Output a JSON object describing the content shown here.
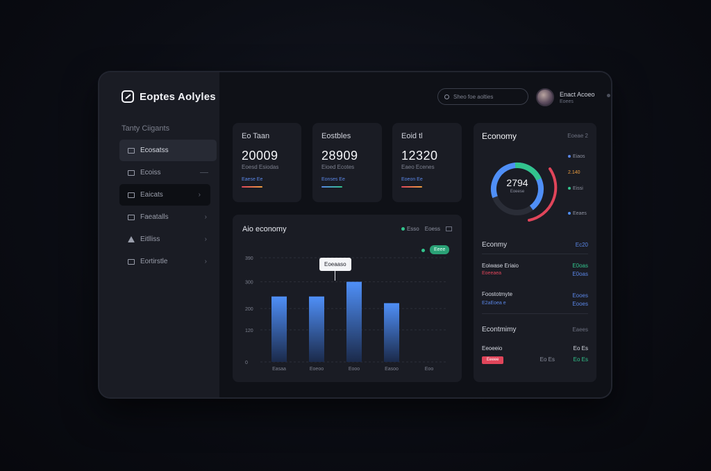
{
  "app": {
    "title": "Eoptes Aolyles"
  },
  "sidebar": {
    "section": "Tanty Ciigants",
    "items": [
      {
        "label": "Ecosatss",
        "icon": "square-icon"
      },
      {
        "label": "Ecoiss",
        "icon": "card-icon"
      },
      {
        "label": "Eaicats",
        "icon": "window-icon"
      },
      {
        "label": "Faeatalls",
        "icon": "folder-icon"
      },
      {
        "label": "Eitlliss",
        "icon": "triangle-icon"
      },
      {
        "label": "Eortirstle",
        "icon": "list-icon"
      }
    ]
  },
  "header": {
    "search_placeholder": "Sheo foe aolties",
    "user": {
      "name": "Enact Acoeo",
      "role": "Eoees"
    }
  },
  "stats": [
    {
      "label": "Eo Taan",
      "value": "20009",
      "sub": "Eoesd Esiodas",
      "link": "Eaese Ee",
      "bar_colors": [
        "#e0455a",
        "#f0a040"
      ]
    },
    {
      "label": "Eostbles",
      "value": "28909",
      "sub": "Eioed Ecotes",
      "link": "Eonses Ee",
      "bar_colors": [
        "#5a86e6",
        "#32c48d"
      ]
    },
    {
      "label": "Eoid tl",
      "value": "12320",
      "sub": "Eaeo Ecenes",
      "link": "Eoeon Ee",
      "bar_colors": [
        "#e0455a",
        "#f0a040"
      ]
    }
  ],
  "bar_chart": {
    "title": "Aio economy",
    "legend": [
      "Esso",
      "Eoess"
    ],
    "badge": "Eeee",
    "tooltip": "Eoeaaso"
  },
  "chart_data": {
    "type": "bar",
    "title": "Aio economy",
    "categories": [
      "Easaa",
      "Eoeoo",
      "Eooo",
      "Easoo",
      "Eoo"
    ],
    "values": [
      245,
      245,
      300,
      220,
      null
    ],
    "yticks": [
      "0",
      "120",
      "200",
      "300",
      "390"
    ],
    "ylim": [
      0,
      390
    ],
    "grid": true,
    "bar_color": "#4f8ff7"
  },
  "economy": {
    "title": "Economy",
    "meta": "Eoeae 2",
    "ring_value": "2794",
    "ring_sub": "Eoeese",
    "ring_labels": [
      {
        "text": "Eiaos",
        "color": "#5a86e6"
      },
      {
        "text": "2.140",
        "color": "#f0a040"
      },
      {
        "text": "Eissi",
        "color": "#32c48d"
      },
      {
        "text": "Eeaes",
        "color": "#4f8ff7"
      }
    ],
    "rows": [
      {
        "title": "Econmy",
        "value": "Ec20",
        "value_color": "#5a86e6"
      },
      {
        "title": "Eoiwase Eriaio",
        "sub": "Eoeeaea",
        "value": "E0oas",
        "value_color": "#32c48d"
      },
      {
        "title": "Foostotmyte",
        "sub": "E2aEoea e",
        "value": "Eooes",
        "value_color": "#5a86e6"
      },
      {
        "title": "Econtmimy",
        "value": "Eaees",
        "value_color": "#6d7180"
      },
      {
        "title": "Eeoeeio",
        "tag": "Eeeee",
        "value": "Eo Es",
        "value2": "Eo Es",
        "value_color": "#d7dae3"
      }
    ]
  }
}
